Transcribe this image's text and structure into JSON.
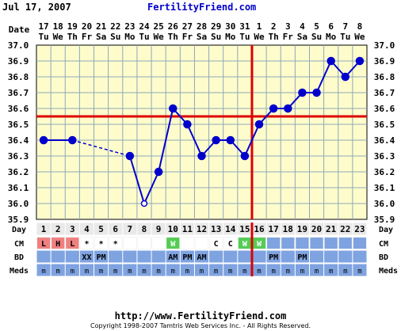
{
  "header": {
    "date": "Jul 17, 2007",
    "site": "FertilityFriend.com"
  },
  "footer": {
    "url": "http://www.FertilityFriend.com",
    "copyright": "Copyright 1998-2007 Tamtris Web Services Inc. - All Rights Reserved."
  },
  "colors": {
    "plot_bg": "#fffccc",
    "grid": "#8ca8b8",
    "line": "#0000cc",
    "marker": "#0000cc",
    "coverline": "#dd0000",
    "ovulation": "#dd0000",
    "day_row_bg": "#e9e9e9",
    "cm_row_bg": "#e9e9e9",
    "bd_row_bg": "#7fa3e0",
    "meds_row_bg": "#7fa3e0",
    "cm_red": "#f08080",
    "cm_green": "#55cc55",
    "cm_blue": "#7fa3e0",
    "cm_teal": "#b8ddd0"
  },
  "chart_data": {
    "type": "line",
    "title": "",
    "ylabel": "",
    "xlabel": "",
    "ylim": [
      35.9,
      37.0
    ],
    "yticks": [
      "37.0",
      "36.9",
      "36.8",
      "36.7",
      "36.6",
      "36.5",
      "36.4",
      "36.3",
      "36.2",
      "36.1",
      "36.0",
      "35.9"
    ],
    "dates": [
      "17",
      "18",
      "19",
      "20",
      "21",
      "22",
      "23",
      "24",
      "25",
      "26",
      "27",
      "28",
      "29",
      "30",
      "31",
      "1",
      "2",
      "3",
      "4",
      "5",
      "6",
      "7",
      "8"
    ],
    "weekdays": [
      "Tu",
      "We",
      "Th",
      "Fr",
      "Sa",
      "Su",
      "Mo",
      "Tu",
      "We",
      "Th",
      "Fr",
      "Sa",
      "Su",
      "Mo",
      "Tu",
      "We",
      "Th",
      "Fr",
      "Sa",
      "Su",
      "Mo",
      "Tu",
      "We"
    ],
    "cycle_days": [
      "1",
      "2",
      "3",
      "4",
      "5",
      "6",
      "7",
      "8",
      "9",
      "10",
      "11",
      "12",
      "13",
      "14",
      "15",
      "16",
      "17",
      "18",
      "19",
      "20",
      "21",
      "22",
      "23"
    ],
    "temperatures": [
      36.4,
      null,
      36.4,
      null,
      null,
      null,
      36.3,
      36.0,
      36.2,
      36.6,
      36.5,
      36.3,
      36.4,
      36.4,
      36.3,
      36.5,
      36.6,
      36.6,
      36.7,
      36.7,
      36.9,
      36.8,
      36.9
    ],
    "open_markers": [
      8
    ],
    "dashed_from_day": 3,
    "dashed_to_day": 7,
    "coverline": 36.55,
    "ovulation_day": 16,
    "row_labels": {
      "day": "Day",
      "cm": "CM",
      "bd": "BD",
      "meds": "Meds"
    },
    "cm": [
      "L",
      "H",
      "L",
      "*",
      "*",
      "*",
      "",
      "",
      "",
      "W",
      "",
      "",
      "C",
      "C",
      "W",
      "W",
      "",
      "",
      "",
      "",
      "",
      "",
      ""
    ],
    "cm_colors": [
      "red",
      "red",
      "red",
      "",
      "",
      "",
      "",
      "",
      "",
      "green",
      "",
      "",
      "",
      "",
      "green",
      "green",
      "blue",
      "blue",
      "blue",
      "blue",
      "blue",
      "blue",
      "blue"
    ],
    "bd": [
      "",
      "",
      "",
      "XX",
      "PM",
      "",
      "",
      "",
      "",
      "AM",
      "PM",
      "AM",
      "",
      "",
      "",
      "",
      "PM",
      "",
      "PM",
      "",
      "",
      "",
      ""
    ],
    "meds": [
      "m",
      "m",
      "m",
      "m",
      "m",
      "m",
      "m",
      "m",
      "m",
      "m",
      "m",
      "m",
      "m",
      "m",
      "m",
      "m",
      "m",
      "m",
      "m",
      "m",
      "m",
      "m",
      "m"
    ]
  }
}
